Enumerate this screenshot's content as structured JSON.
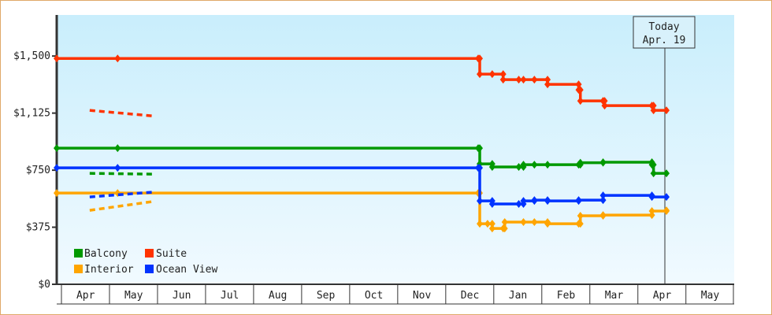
{
  "chart_data": {
    "type": "line",
    "title": "",
    "xlabel": "",
    "ylabel": "",
    "ylim": [
      0,
      1770
    ],
    "y_ticks": [
      0,
      375,
      750,
      1125,
      1500
    ],
    "y_tick_labels": [
      "$0",
      "$375",
      "$750",
      "$1,125",
      "$1,500"
    ],
    "x_ticks": [
      "Apr",
      "May",
      "Jun",
      "Jul",
      "Aug",
      "Sep",
      "Oct",
      "Nov",
      "Dec",
      "Jan",
      "Feb",
      "Mar",
      "Apr",
      "May"
    ],
    "grid": false,
    "legend_position": "bottom-left",
    "today_marker": {
      "line1": "Today",
      "line2": "Apr. 19",
      "date": "Apr 19"
    },
    "series": [
      {
        "name": "Balcony",
        "color": "#009900",
        "points": [
          [
            "Apr 1",
            895
          ],
          [
            "May 9",
            895
          ],
          [
            "Dec 23",
            895
          ],
          [
            "Dec 24",
            791
          ],
          [
            "Jan 1",
            771
          ],
          [
            "Jan 18",
            771
          ],
          [
            "Jan 21",
            786
          ],
          [
            "Jan 28",
            786
          ],
          [
            "Feb 5",
            786
          ],
          [
            "Feb 23",
            786
          ],
          [
            "Feb 24",
            799
          ],
          [
            "Mar 10",
            802
          ],
          [
            "Apr 10",
            786
          ],
          [
            "Apr 11",
            729
          ],
          [
            "Apr 19",
            729
          ]
        ],
        "forecast": [
          [
            "Apr 19",
            729
          ],
          [
            "May 31",
            724
          ]
        ]
      },
      {
        "name": "Suite",
        "color": "#ff3300",
        "points": [
          [
            "Apr 1",
            1484
          ],
          [
            "May 9",
            1484
          ],
          [
            "Dec 23",
            1484
          ],
          [
            "Dec 24",
            1381
          ],
          [
            "Jan 1",
            1381
          ],
          [
            "Jan 8",
            1345
          ],
          [
            "Jan 18",
            1345
          ],
          [
            "Jan 21",
            1345
          ],
          [
            "Jan 28",
            1345
          ],
          [
            "Feb 5",
            1314
          ],
          [
            "Feb 23",
            1278
          ],
          [
            "Feb 24",
            1205
          ],
          [
            "Mar 10",
            1205
          ],
          [
            "Mar 11",
            1174
          ],
          [
            "Apr 10",
            1174
          ],
          [
            "Apr 11",
            1143
          ],
          [
            "Apr 19",
            1143
          ]
        ],
        "forecast": [
          [
            "Apr 19",
            1143
          ],
          [
            "May 31",
            1107
          ]
        ]
      },
      {
        "name": "Interior",
        "color": "#ffa500",
        "points": [
          [
            "Apr 1",
            600
          ],
          [
            "May 9",
            600
          ],
          [
            "Dec 23",
            600
          ],
          [
            "Dec 24",
            398
          ],
          [
            "Dec 29",
            398
          ],
          [
            "Jan 1",
            367
          ],
          [
            "Jan 8",
            367
          ],
          [
            "Jan 9",
            409
          ],
          [
            "Jan 21",
            409
          ],
          [
            "Jan 28",
            409
          ],
          [
            "Feb 5",
            398
          ],
          [
            "Feb 23",
            398
          ],
          [
            "Feb 24",
            450
          ],
          [
            "Mar 10",
            455
          ],
          [
            "Apr 10",
            481
          ],
          [
            "Apr 19",
            486
          ]
        ],
        "forecast": [
          [
            "Apr 19",
            486
          ],
          [
            "May 31",
            543
          ]
        ]
      },
      {
        "name": "Ocean View",
        "color": "#0033ff",
        "points": [
          [
            "Apr 1",
            765
          ],
          [
            "May 9",
            765
          ],
          [
            "Dec 23",
            765
          ],
          [
            "Dec 24",
            548
          ],
          [
            "Jan 1",
            528
          ],
          [
            "Jan 18",
            528
          ],
          [
            "Jan 21",
            548
          ],
          [
            "Jan 28",
            553
          ],
          [
            "Feb 5",
            548
          ],
          [
            "Feb 23",
            553
          ],
          [
            "Mar 10",
            584
          ],
          [
            "Apr 10",
            574
          ],
          [
            "Apr 19",
            574
          ]
        ],
        "forecast": [
          [
            "Apr 19",
            574
          ],
          [
            "May 31",
            605
          ]
        ]
      }
    ]
  }
}
